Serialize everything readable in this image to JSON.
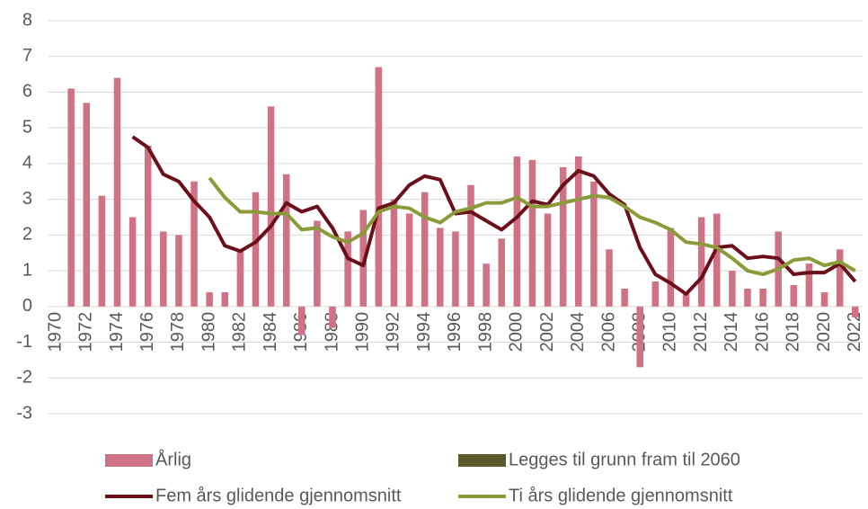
{
  "chart_data": {
    "type": "bar",
    "categories": [
      "1970",
      null,
      "1972",
      null,
      "1974",
      null,
      "1976",
      null,
      "1978",
      null,
      "1980",
      null,
      "1982",
      null,
      "1984",
      null,
      "1986",
      null,
      "1988",
      null,
      "1990",
      null,
      "1992",
      null,
      "1994",
      null,
      "1996",
      null,
      "1998",
      null,
      "2000",
      null,
      "2002",
      null,
      "2004",
      null,
      "2006",
      null,
      "2008",
      null,
      "2010",
      null,
      "2012",
      null,
      "2014",
      null,
      "2016",
      null,
      "2018",
      null,
      "2020",
      null,
      "2022"
    ],
    "series": [
      {
        "name": "Årlig",
        "type": "bar",
        "color": "#cf7384",
        "values": [
          null,
          6.1,
          5.7,
          3.1,
          6.4,
          2.5,
          4.5,
          2.1,
          2.0,
          3.5,
          0.4,
          0.4,
          1.6,
          3.2,
          5.6,
          3.7,
          -0.8,
          2.4,
          -0.6,
          2.1,
          2.7,
          6.7,
          3.0,
          2.6,
          3.2,
          2.2,
          2.1,
          3.4,
          1.2,
          1.9,
          4.2,
          4.1,
          2.6,
          3.9,
          4.2,
          3.5,
          1.6,
          0.5,
          -1.7,
          0.7,
          2.2,
          0.4,
          2.5,
          2.6,
          1.0,
          0.5,
          0.5,
          2.1,
          0.6,
          1.2,
          0.4,
          1.6,
          -0.3
        ]
      },
      {
        "name": "Legges til grunn fram til 2060",
        "type": "bar",
        "color": "#5c5a2c"
      },
      {
        "name": "Fem års glidende gjennomsnitt",
        "type": "line",
        "color": "#6b0f1a",
        "values": [
          null,
          null,
          null,
          null,
          null,
          4.75,
          4.45,
          3.7,
          3.5,
          2.95,
          2.5,
          1.7,
          1.55,
          1.8,
          2.25,
          2.9,
          2.65,
          2.8,
          2.2,
          1.35,
          1.15,
          2.75,
          2.9,
          3.4,
          3.65,
          3.55,
          2.6,
          2.65,
          2.4,
          2.15,
          2.5,
          2.95,
          2.85,
          3.4,
          3.8,
          3.65,
          3.15,
          2.85,
          1.65,
          0.9,
          0.65,
          0.35,
          0.8,
          1.65,
          1.7,
          1.35,
          1.4,
          1.35,
          0.9,
          0.95,
          0.95,
          1.2,
          0.7
        ]
      },
      {
        "name": "Ti års glidende gjennomsnitt",
        "type": "line",
        "color": "#8c9b3a",
        "values": [
          null,
          null,
          null,
          null,
          null,
          null,
          null,
          null,
          null,
          null,
          3.6,
          3.05,
          2.65,
          2.65,
          2.6,
          2.6,
          2.15,
          2.2,
          1.95,
          1.8,
          2.05,
          2.65,
          2.8,
          2.75,
          2.5,
          2.35,
          2.65,
          2.75,
          2.9,
          2.9,
          3.05,
          2.8,
          2.8,
          2.9,
          3.0,
          3.1,
          3.05,
          2.8,
          2.5,
          2.35,
          2.15,
          1.8,
          1.75,
          1.65,
          1.35,
          1.0,
          0.9,
          1.05,
          1.3,
          1.35,
          1.15,
          1.25,
          1.0
        ]
      }
    ],
    "ylim": [
      -3,
      8
    ],
    "yticks": [
      -3,
      -2,
      -1,
      0,
      1,
      2,
      3,
      4,
      5,
      6,
      7,
      8
    ],
    "grid": true
  }
}
